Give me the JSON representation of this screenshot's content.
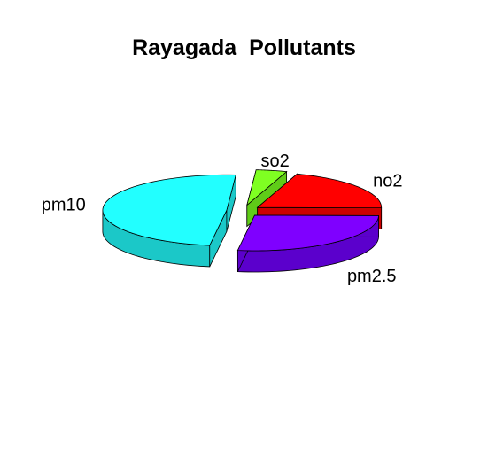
{
  "chart_data": {
    "type": "pie",
    "title": "Rayagada  Pollutants",
    "style": "3d-exploded",
    "slices": [
      {
        "label": "no2",
        "value": 20,
        "color": "#FF0000",
        "side": "#CC0000"
      },
      {
        "label": "pm2.5",
        "value": 27,
        "color": "#7F00FF",
        "side": "#5B00CC"
      },
      {
        "label": "pm10",
        "value": 49,
        "color": "#22FFFF",
        "side": "#1BC8C8"
      },
      {
        "label": "so2",
        "value": 4,
        "color": "#7FFF22",
        "side": "#5FCC18"
      }
    ]
  }
}
